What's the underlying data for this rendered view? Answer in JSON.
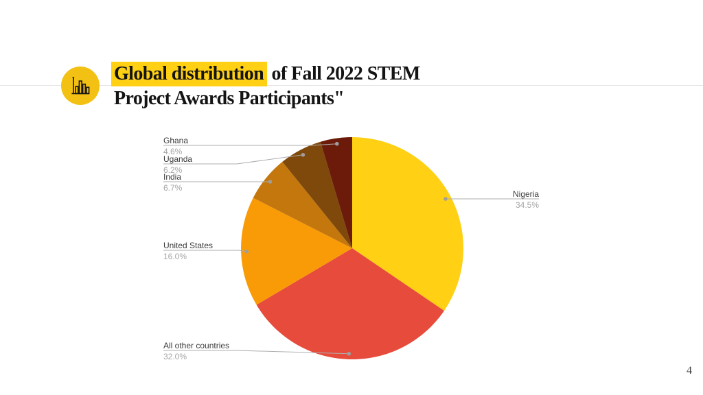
{
  "slide": {
    "page_number": "4",
    "accent_yellow": "#FFD013",
    "logo_circle_color": "#F3C114"
  },
  "header": {
    "icon": "bar-chart-icon",
    "highlight_text": "Global distribution",
    "rest_line1": " of Fall 2022 STEM",
    "line2": "Project Awards Participants\""
  },
  "chart_data": {
    "type": "pie",
    "title": "Global distribution of Fall 2022 STEM Project Awards Participants\"",
    "unit": "%",
    "start_angle_deg": 0,
    "direction": "clockwise",
    "legend_position": "callout-labels",
    "slices": [
      {
        "label": "Nigeria",
        "value": 34.5,
        "pct_label": "34.5%",
        "color": "#FFD013"
      },
      {
        "label": "All other countries",
        "value": 32.0,
        "pct_label": "32.0%",
        "color": "#E74B3C"
      },
      {
        "label": "United States",
        "value": 16.0,
        "pct_label": "16.0%",
        "color": "#F99B07"
      },
      {
        "label": "India",
        "value": 6.7,
        "pct_label": "6.7%",
        "color": "#C4770D"
      },
      {
        "label": "Uganda",
        "value": 6.2,
        "pct_label": "6.2%",
        "color": "#7F490B"
      },
      {
        "label": "Ghana",
        "value": 4.6,
        "pct_label": "4.6%",
        "color": "#6C1B0A"
      }
    ]
  }
}
